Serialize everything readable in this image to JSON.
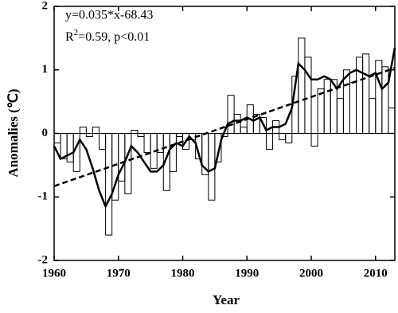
{
  "chart_data": {
    "type": "bar",
    "x": [
      1960,
      1961,
      1962,
      1963,
      1964,
      1965,
      1966,
      1967,
      1968,
      1969,
      1970,
      1971,
      1972,
      1973,
      1974,
      1975,
      1976,
      1977,
      1978,
      1979,
      1980,
      1981,
      1982,
      1983,
      1984,
      1985,
      1986,
      1987,
      1988,
      1989,
      1990,
      1991,
      1992,
      1993,
      1994,
      1995,
      1996,
      1997,
      1998,
      1999,
      2000,
      2001,
      2002,
      2003,
      2004,
      2005,
      2006,
      2007,
      2008,
      2009,
      2010,
      2011,
      2012,
      2013
    ],
    "series": [
      {
        "type": "bar",
        "color": "#000000",
        "values": [
          -0.15,
          -0.4,
          -0.45,
          -0.6,
          0.1,
          -0.05,
          0.1,
          -0.25,
          -1.6,
          -1.05,
          -0.75,
          -0.95,
          0.05,
          -0.05,
          -0.3,
          -0.55,
          -0.3,
          -0.9,
          -0.6,
          -0.05,
          -0.25,
          -0.1,
          -0.4,
          -0.65,
          -1.05,
          -0.45,
          -0.05,
          0.6,
          0.3,
          0.1,
          0.45,
          0.3,
          0.25,
          -0.25,
          0.2,
          -0.1,
          -0.15,
          0.9,
          1.5,
          1.2,
          -0.2,
          0.7,
          0.85,
          0.85,
          0.55,
          1.0,
          0.8,
          1.2,
          1.25,
          0.55,
          1.15,
          1.05,
          0.4,
          null
        ]
      },
      {
        "type": "line",
        "color": "#000000",
        "values": [
          -0.2,
          -0.4,
          -0.35,
          -0.3,
          -0.1,
          -0.25,
          -0.55,
          -0.9,
          -1.15,
          -0.95,
          -0.65,
          -0.45,
          -0.2,
          -0.3,
          -0.45,
          -0.6,
          -0.6,
          -0.5,
          -0.25,
          -0.15,
          -0.2,
          -0.05,
          -0.15,
          -0.5,
          -0.6,
          -0.55,
          -0.1,
          0.15,
          0.2,
          0.2,
          0.25,
          0.2,
          0.25,
          0.05,
          0.1,
          0.1,
          0.15,
          0.4,
          1.1,
          1.0,
          0.85,
          0.85,
          0.9,
          0.85,
          0.7,
          0.85,
          0.95,
          1.0,
          0.95,
          0.9,
          0.95,
          0.7,
          0.8,
          1.35
        ]
      },
      {
        "type": "trend",
        "color": "#000000",
        "x": [
          1960,
          2013
        ],
        "values": [
          -0.83,
          1.03
        ]
      }
    ],
    "annotations": [
      "y=0.035*x-68.43",
      "R",
      "2",
      "=0.59, p<0.01"
    ],
    "xlabel": "Year",
    "ylabel": "Anomalies (℃)",
    "xlim": [
      1960,
      2013
    ],
    "xticks": [
      1960,
      1970,
      1980,
      1990,
      2000,
      2010
    ],
    "ylim": [
      -2,
      2
    ],
    "yticks": [
      -2,
      -1,
      0,
      1,
      2
    ],
    "hline": 0
  }
}
